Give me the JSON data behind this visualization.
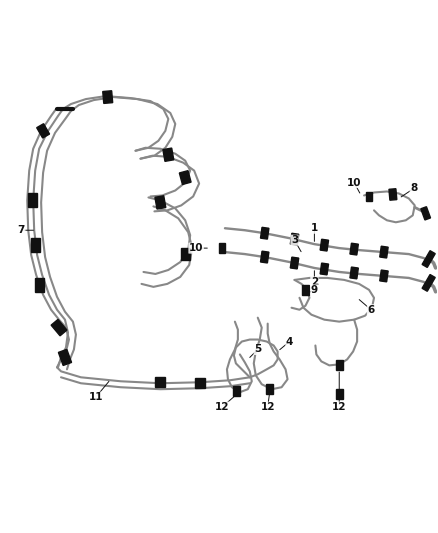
{
  "bg_color": "#ffffff",
  "line_color": "#888888",
  "dark_color": "#111111",
  "label_color": "#111111",
  "figsize": [
    4.38,
    5.33
  ],
  "dpi": 100,
  "lw_hose": 1.5,
  "lw_thick": 2.5,
  "lw_pair": 1.2
}
